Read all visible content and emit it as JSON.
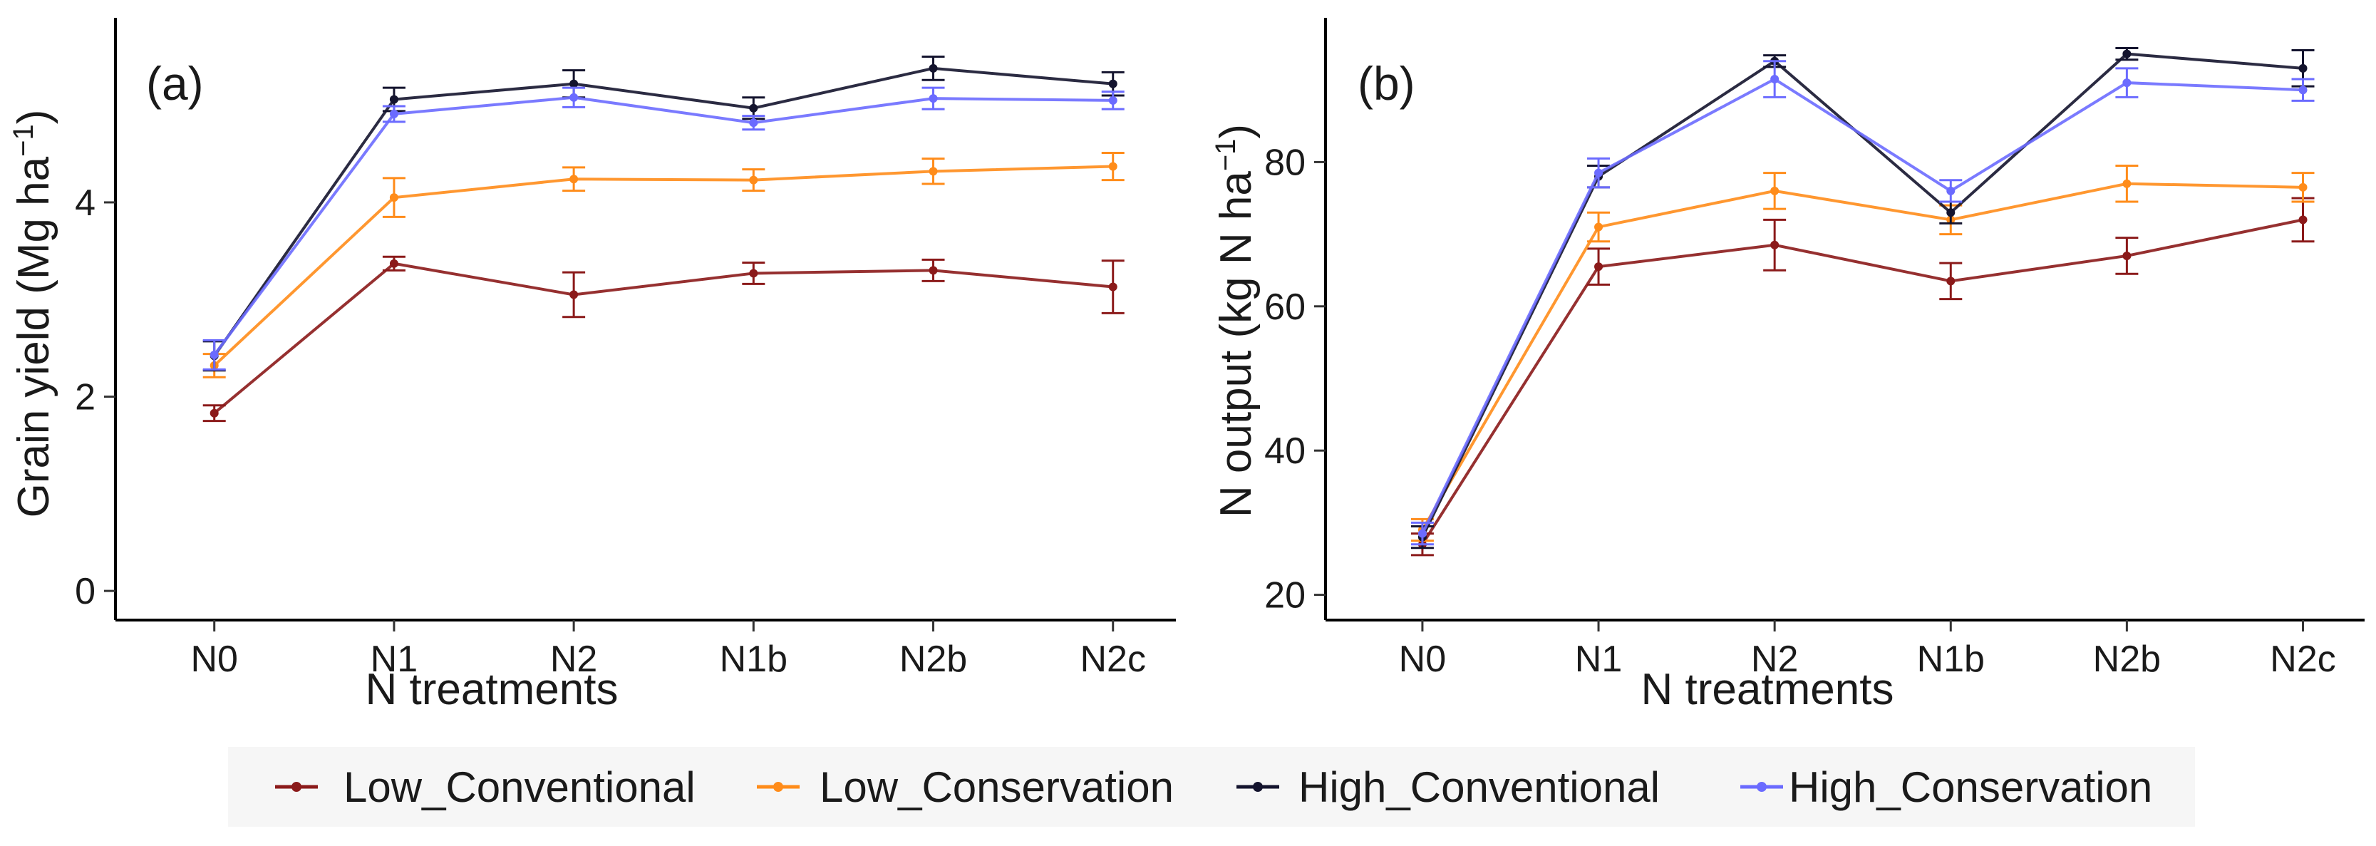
{
  "chart_data": [
    {
      "type": "line",
      "panel_label": "(a)",
      "title": "",
      "xlabel": "N treatments",
      "ylabel_main": "Grain yield (Mg ha",
      "ylabel_sup": "−1",
      "ylabel_close": ")",
      "categories": [
        "N0",
        "N1",
        "N2",
        "N1b",
        "N2b",
        "N2c"
      ],
      "ylim": [
        -0.3,
        5.9
      ],
      "yticks": [
        0,
        2,
        4
      ],
      "series": [
        {
          "name": "Low_Conventional",
          "color": "#8b1a1a",
          "values": [
            1.83,
            3.37,
            3.05,
            3.27,
            3.3,
            3.13
          ],
          "errors": [
            0.08,
            0.07,
            0.23,
            0.11,
            0.11,
            0.27
          ]
        },
        {
          "name": "Low_Conservation",
          "color": "#ff8c1a",
          "values": [
            2.32,
            4.05,
            4.24,
            4.23,
            4.32,
            4.37
          ],
          "errors": [
            0.12,
            0.2,
            0.12,
            0.11,
            0.13,
            0.14
          ]
        },
        {
          "name": "High_Conventional",
          "color": "#14142e",
          "values": [
            2.42,
            5.06,
            5.22,
            4.97,
            5.38,
            5.22
          ],
          "errors": [
            0.15,
            0.12,
            0.14,
            0.11,
            0.12,
            0.12
          ]
        },
        {
          "name": "High_Conservation",
          "color": "#6b6bff",
          "values": [
            2.43,
            4.91,
            5.08,
            4.82,
            5.07,
            5.05
          ],
          "errors": [
            0.15,
            0.08,
            0.1,
            0.07,
            0.11,
            0.09
          ]
        }
      ]
    },
    {
      "type": "line",
      "panel_label": "(b)",
      "title": "",
      "xlabel": "N treatments",
      "ylabel_main": "N output (kg N ha",
      "ylabel_sup": "−1",
      "ylabel_close": ")",
      "categories": [
        "N0",
        "N1",
        "N2",
        "N1b",
        "N2b",
        "N2c"
      ],
      "ylim": [
        16.5,
        100
      ],
      "yticks": [
        20,
        40,
        60,
        80
      ],
      "series": [
        {
          "name": "Low_Conventional",
          "color": "#8b1a1a",
          "values": [
            27.0,
            65.5,
            68.5,
            63.5,
            67.0,
            72.0
          ],
          "errors": [
            1.5,
            2.5,
            3.5,
            2.5,
            2.5,
            3.0
          ]
        },
        {
          "name": "Low_Conservation",
          "color": "#ff8c1a",
          "values": [
            29.0,
            71.0,
            76.0,
            72.0,
            77.0,
            76.5
          ],
          "errors": [
            1.5,
            2.0,
            2.5,
            2.0,
            2.5,
            2.0
          ]
        },
        {
          "name": "High_Conventional",
          "color": "#14142e",
          "values": [
            28.0,
            78.0,
            94.0,
            73.0,
            95.0,
            93.0
          ],
          "errors": [
            1.5,
            1.5,
            0.8,
            1.5,
            0.8,
            2.5
          ]
        },
        {
          "name": "High_Conservation",
          "color": "#6b6bff",
          "values": [
            28.5,
            78.5,
            91.5,
            76.0,
            91.0,
            90.0
          ],
          "errors": [
            1.5,
            2.0,
            2.5,
            1.5,
            2.0,
            1.5
          ]
        }
      ]
    }
  ],
  "legend": {
    "position": "bottom",
    "items": [
      {
        "label": "Low_Conventional",
        "color": "#8b1a1a"
      },
      {
        "label": "Low_Conservation",
        "color": "#ff8c1a"
      },
      {
        "label": "High_Conventional",
        "color": "#14142e"
      },
      {
        "label": "High_Conservation",
        "color": "#6b6bff"
      }
    ]
  }
}
